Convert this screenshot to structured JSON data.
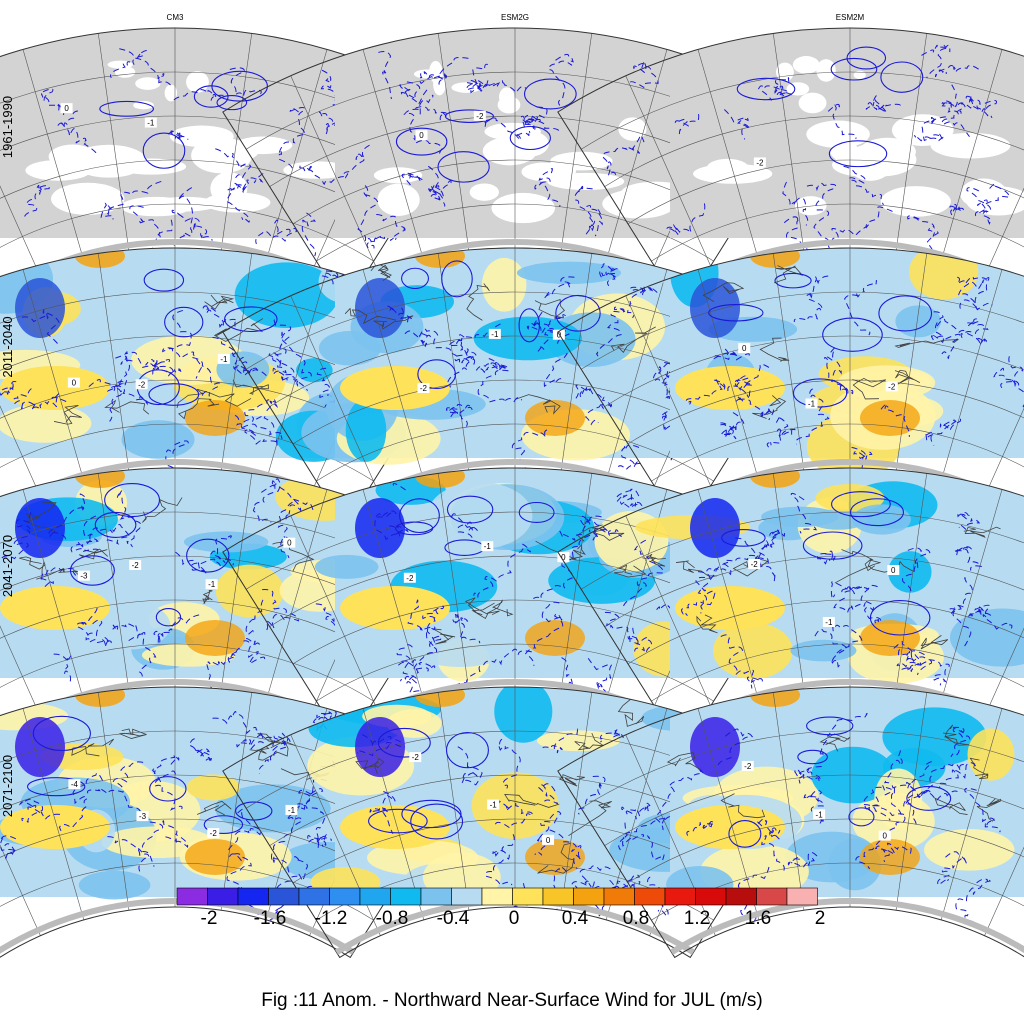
{
  "figure": {
    "caption": "Fig :11  Anom.  - Northward Near-Surface Wind for JUL (m/s)",
    "columns": [
      "CM3",
      "ESM2G",
      "ESM2M"
    ],
    "rows": [
      "1961-1990",
      "2011-2040",
      "2041-2070",
      "2071-2100"
    ]
  },
  "colorbar": {
    "colors": [
      "#8b2be2",
      "#3a1ee6",
      "#1426f0",
      "#2a55d8",
      "#2f72e6",
      "#2e8ff0",
      "#1fa6ee",
      "#10baf0",
      "#7cc2ee",
      "#b7dcf2",
      "#fff4a8",
      "#fde25a",
      "#f8c528",
      "#f4a20f",
      "#f07b08",
      "#ee4a0a",
      "#e8190e",
      "#d80a0a",
      "#b80d0d",
      "#d84848",
      "#f8b0b0"
    ],
    "tick_labels": [
      "-2",
      "-1.6",
      "-1.2",
      "-0.8",
      "-0.4",
      "0",
      "0.4",
      "0.8",
      "1.2",
      "1.6",
      "2"
    ]
  },
  "contour_labels": {
    "r0": [
      [
        "0",
        "-1"
      ],
      [
        "0",
        "-2"
      ],
      [
        "-2"
      ]
    ],
    "r1": [
      [
        "0",
        "-2",
        "-1"
      ],
      [
        "-2",
        "-1",
        "0"
      ],
      [
        "0",
        "-1",
        "-2"
      ]
    ],
    "r2": [
      [
        "-3",
        "-2",
        "-1",
        "0"
      ],
      [
        "-2",
        "-1",
        "0"
      ],
      [
        "-2",
        "-1",
        "0"
      ]
    ],
    "r3": [
      [
        "-4",
        "-3",
        "-2",
        "-1"
      ],
      [
        "-2",
        "-1",
        "0"
      ],
      [
        "-2",
        "-1",
        "0"
      ]
    ]
  },
  "styles": {
    "land_gray": "#d3d3d3",
    "contour_blue": "#1a1ad8",
    "outline": "#333333",
    "coast": "#404040"
  }
}
